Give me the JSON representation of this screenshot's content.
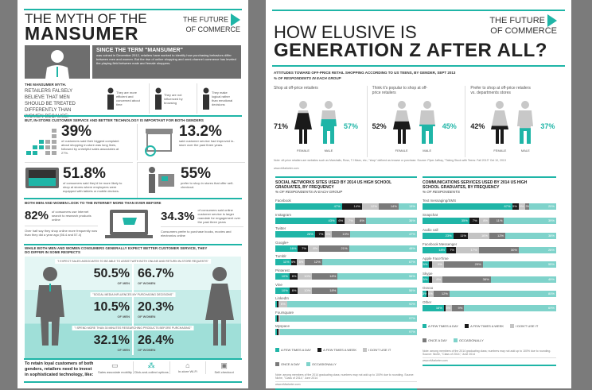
{
  "left": {
    "title_line1": "THE MYTH OF THE",
    "title_line2": "MANSUMER",
    "logo_line1": "THE FUTURE",
    "logo_line2": "OF COMMERCE",
    "intro_heading": "SINCE THE TERM \"MANSUMER\"",
    "intro_text": "was coined in December 2012, retailers have worked to identify how purchasing behaviors differ between men and women. But the rise of online shopping and omni-channel commerce has leveled the playing field between male and female shoppers.",
    "myth_label": "THE MANSUMER MYTH.",
    "myth_text": "RETAILERS FALSELY BELIEVE THAT MEN SHOULD BE TREATED DIFFERENTLY THAN WOMEN BECAUSE:",
    "myth_items": [
      "They are more efficient and concerned about time",
      "They are not influenced by browsing",
      "They make logical rather than emotional decisions"
    ],
    "section1_heading": "BUT, IN-STORE CUSTOMER SERVICE AND BETTER TECHNOLOGY IS IMPORTANT FOR BOTH GENDERS",
    "stats": [
      {
        "value": "39%",
        "text": "of customers said their biggest complaint about shopping in-store was long lines, followed by unhelpful sales associates at 27%."
      },
      {
        "value": "13.2%",
        "text": "said customer service had improved in-store over the past three years."
      },
      {
        "value": "51.8%",
        "text": "of consumers said they'd be more likely to shop at stores where employees were equipped with tablets or mobile devices."
      },
      {
        "value": "55%",
        "text": "prefer to shop in stores that offer self-checkout."
      }
    ],
    "section2_heading": "BOTH MEN AND WOMEN LOOK TO THE INTERNET MORE THAN EVER BEFORE",
    "internet": [
      {
        "value": "82%",
        "text": "of consumers use Internet search to research products online",
        "sub": "Over half say they shop online more frequently now than they did a year ago (56.4 and 57.4)"
      },
      {
        "value": "34.3%",
        "text": "of consumers said online customer service is larger mandate for engagement over the past three years",
        "sub": "Consumers prefer to purchase books, movies and electronics online"
      }
    ],
    "section3_heading": "WHILE BOTH MEN AND WOMEN CONSUMERS GENERALLY EXPECT BETTER CUSTOMER SERVICE, THEY DO DIFFER IN SOME RESPECTS",
    "respects": [
      {
        "quote": "\"I EXPECT SALES ASSOCIATES TO BE ABLE TO ASSIST WITH BOTH ONLINE AND RETURN IN-STORE REQUESTS\"",
        "men": "50.5%",
        "women": "66.7%"
      },
      {
        "quote": "\"SOCIAL MEDIA INFLUENCES MY PURCHASING DECISIONS\"",
        "men": "10.5%",
        "women": "20.3%"
      },
      {
        "quote": "\"I SPEND MORE THAN 30 MINUTES RESEARCHING PRODUCTS BEFORE PURCHASING\"",
        "men": "32.1%",
        "women": "26.4%"
      }
    ],
    "of_men": "OF MEN",
    "of_women": "OF WOMEN",
    "closing": "To retain loyal customers of both genders, retailers need to invest in sophisticated technology, like:",
    "tech": [
      "Sales associate mobility",
      "Click-and-collect options",
      "In-store Wi-Fi",
      "Self-checkout"
    ]
  },
  "right": {
    "title_line1": "HOW ELUSIVE IS",
    "title_line2": "GENERATION Z AFTER ALL?",
    "logo_line1": "THE FUTURE",
    "logo_line2": "OF COMMERCE",
    "attitudes_heading": "ATTITUDES TOWARD OFF-PRICE RETAIL SHOPPING ACCORDING TO US TEENS, BY GENDER, SEPT 2013",
    "attitudes_sub": "% OF RESPONDENTS IN EACH GROUP",
    "female_label": "FEMALE",
    "male_label": "MALE",
    "attitudes": [
      {
        "label": "Shop at off-price retailers",
        "female": 71,
        "male": 57,
        "female_text": "71%",
        "male_text": "57%"
      },
      {
        "label": "Think it's popular to shop at off-price retailers",
        "female": 52,
        "male": 45,
        "female_text": "52%",
        "male_text": "45%"
      },
      {
        "label": "Prefer to shop at off-price retailers vs. departments stores",
        "female": 42,
        "male": 37,
        "female_text": "42%",
        "male_text": "37%"
      }
    ],
    "attitudes_note": "Note: off-price retailers are websites such as Marshalls, Ross, TJ Maxx, etc.; \"shop\" defined as browse or purchase. Source: Piper Jaffray, \"Taking Stock with Teens: Fall 2013\" Oct 10, 2013",
    "attitudes_footer": "www.eMarketer.com",
    "colors": {
      "teal": "#1fb5a7",
      "black": "#1a1a1a",
      "light_gray": "#c4c4c4",
      "dark_gray": "#7a7a7a",
      "light_teal": "#7fd3cb"
    }
  },
  "chart_data": [
    {
      "type": "bar",
      "stacked": true,
      "orientation": "horizontal",
      "title": "SOCIAL NETWORKS SITES USED BY 2014 US HIGH SCHOOL GRADUATES, BY FREQUENCY",
      "subtitle": "% OF RESPONDENTS IN EACH GROUP",
      "series_names": [
        "A FEW TIMES A DAY",
        "A FEW TIMES A WEEK",
        "I DON'T USE IT",
        "ONCE A DAY",
        "OCCASIONALLY"
      ],
      "categories": [
        "Facebook",
        "Instagram",
        "Twitter",
        "Google+",
        "Tumblr",
        "Pinterest",
        "Vine",
        "LinkedIn",
        "Foursquare",
        "Myspace"
      ],
      "values": [
        [
          47,
          14,
          12,
          14,
          13
        ],
        [
          43,
          6,
          7,
          8,
          36
        ],
        [
          28,
          7,
          5,
          13,
          47
        ],
        [
          16,
          7,
          8,
          21,
          48
        ],
        [
          11,
          4,
          6,
          12,
          67
        ],
        [
          10,
          6,
          10,
          18,
          56
        ],
        [
          10,
          6,
          10,
          18,
          56
        ],
        [
          1,
          1,
          6,
          0,
          92
        ],
        [
          1,
          1,
          1,
          0,
          97
        ],
        [
          1,
          1,
          1,
          0,
          97
        ]
      ],
      "note": "Note: among members of the 2014 graduating class; numbers may not add up to 100% due to rounding. Source: Niche, \"Class of 2014,\" June 2014",
      "footer": "www.eMarketer.com"
    },
    {
      "type": "bar",
      "stacked": true,
      "orientation": "horizontal",
      "title": "COMMUNICATIONS SERVICES USED BY 2014 US HIGH SCHOOL GRADUATES, BY FREQUENCY",
      "subtitle": "% OF RESPONDENTS",
      "series_names": [
        "A FEW TIMES A DAY",
        "A FEW TIMES A WEEK",
        "I DON'T USE IT",
        "ONCE A DAY",
        "OCCASIONALLY"
      ],
      "categories": [
        "Text messaging/SMS",
        "Snapchat",
        "Audio call",
        "Facebook Messenger",
        "Apple FaceTime",
        "Skype",
        "Oovoo",
        "Other"
      ],
      "values": [
        [
          67,
          5,
          5,
          3,
          20
        ],
        [
          35,
          7,
          8,
          11,
          39
        ],
        [
          23,
          11,
          16,
          12,
          38
        ],
        [
          18,
          7,
          17,
          30,
          28
        ],
        [
          5,
          2,
          9,
          29,
          55
        ],
        [
          5,
          2,
          8,
          36,
          49
        ],
        [
          3,
          1,
          4,
          12,
          80
        ],
        [
          16,
          1,
          5,
          9,
          69
        ]
      ],
      "note": "Note: among members of the 2014 graduating class; numbers may not add up to 100% due to rounding. Source: Niche, \"Class of 2014,\" June 2014",
      "footer": "www.eMarketer.com"
    }
  ]
}
